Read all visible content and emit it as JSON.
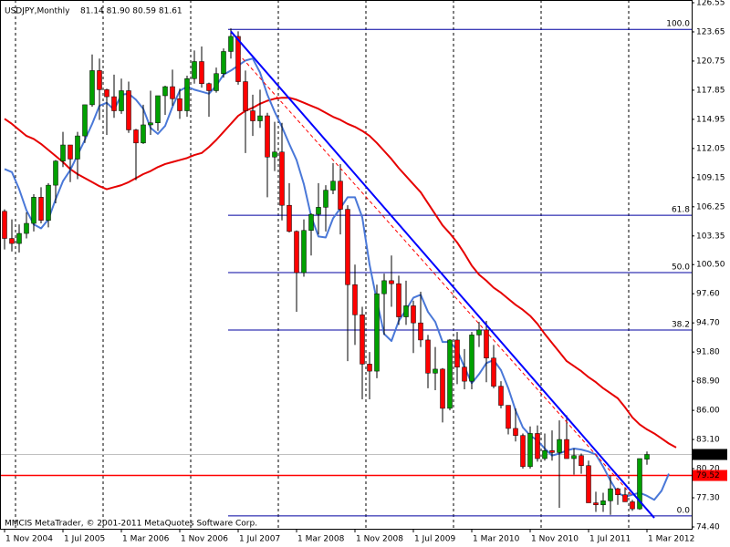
{
  "chart_data": {
    "type": "candlestick",
    "title": "USDJPY,Monthly",
    "subtitle": "81.14 81.90 80.59 81.61",
    "footer": "MMCIS MetaTrader, © 2001-2011 MetaQuotes Software Corp.",
    "categories": [
      "1 Nov 2004",
      null,
      null,
      null,
      null,
      null,
      null,
      null,
      "1 Jul 2005",
      null,
      null,
      null,
      null,
      null,
      null,
      null,
      "1 Mar 2006",
      null,
      null,
      null,
      null,
      null,
      null,
      null,
      "1 Nov 2006",
      null,
      null,
      null,
      null,
      null,
      null,
      null,
      "1 Jul 2007",
      null,
      null,
      null,
      null,
      null,
      null,
      null,
      "1 Mar 2008",
      null,
      null,
      null,
      null,
      null,
      null,
      null,
      "1 Nov 2008",
      null,
      null,
      null,
      null,
      null,
      null,
      null,
      "1 Jul 2009",
      null,
      null,
      null,
      null,
      null,
      null,
      null,
      "1 Mar 2010",
      null,
      null,
      null,
      null,
      null,
      null,
      null,
      "1 Nov 2010",
      null,
      null,
      null,
      null,
      null,
      null,
      null,
      "1 Jul 2011",
      null,
      null,
      null,
      null,
      null,
      null,
      null,
      "1 Mar 2012",
      null,
      null,
      null,
      null,
      null,
      null
    ],
    "open": [
      105.8,
      103.1,
      102.6,
      103.6,
      104.6,
      107.2,
      104.9,
      108.4,
      110.8,
      112.4,
      111.0,
      113.3,
      116.4,
      119.8,
      117.9,
      117.2,
      115.8,
      117.8,
      113.9,
      112.6,
      114.4,
      114.6,
      117.3,
      118.2,
      117.0,
      115.8,
      119.0,
      120.7,
      118.5,
      117.8,
      119.5,
      121.7,
      123.2,
      118.7,
      115.8,
      114.8,
      115.3,
      111.2,
      111.7,
      106.4,
      103.8,
      99.7,
      103.9,
      105.5,
      106.2,
      107.9,
      108.8,
      106.0,
      98.5,
      95.5,
      90.6,
      89.9,
      97.6,
      98.9,
      98.6,
      95.3,
      96.4,
      94.7,
      93.0,
      89.7,
      90.1,
      86.2,
      93.0,
      90.3,
      88.9,
      93.5,
      94.0,
      91.2,
      88.4,
      86.5,
      84.2,
      83.5,
      80.4,
      83.7,
      81.2,
      82.0,
      81.8,
      83.1,
      81.2,
      81.5,
      80.5,
      76.8,
      76.6,
      77.0,
      78.2,
      77.6,
      76.9,
      76.2,
      81.14,
      null,
      null,
      null,
      null,
      null,
      null
    ],
    "high": [
      106.0,
      105.0,
      104.5,
      105.7,
      107.5,
      108.2,
      108.6,
      110.9,
      113.7,
      112.4,
      113.7,
      116.4,
      121.4,
      121.0,
      118.0,
      119.4,
      119.0,
      118.7,
      114.0,
      116.4,
      117.8,
      117.3,
      118.3,
      119.9,
      118.0,
      119.3,
      121.8,
      122.2,
      118.6,
      120.1,
      122.0,
      124.0,
      123.7,
      119.8,
      117.4,
      117.9,
      115.6,
      114.7,
      114.6,
      108.6,
      103.9,
      105.0,
      105.6,
      108.6,
      108.4,
      110.6,
      110.5,
      106.4,
      100.5,
      96.3,
      91.8,
      98.5,
      99.6,
      101.4,
      99.4,
      98.9,
      96.9,
      97.8,
      93.5,
      92.3,
      90.2,
      93.1,
      93.8,
      92.1,
      93.8,
      94.8,
      94.9,
      92.5,
      88.9,
      86.5,
      86.2,
      83.7,
      84.4,
      84.5,
      83.7,
      84.0,
      85.0,
      85.5,
      82.2,
      81.7,
      81.0,
      77.9,
      77.8,
      79.5,
      78.3,
      78.3,
      77.1,
      81.2,
      81.9,
      null,
      null,
      null,
      null,
      null,
      null
    ],
    "low": [
      102.0,
      101.8,
      101.7,
      103.1,
      103.8,
      104.6,
      104.2,
      106.6,
      110.2,
      108.7,
      109.0,
      112.6,
      116.2,
      114.9,
      113.4,
      115.1,
      115.5,
      113.6,
      108.9,
      112.5,
      113.4,
      113.8,
      115.4,
      116.3,
      115.0,
      115.2,
      118.5,
      118.1,
      115.2,
      117.6,
      119.1,
      121.0,
      118.4,
      111.6,
      113.3,
      114.1,
      107.2,
      109.8,
      104.9,
      103.7,
      95.8,
      99.3,
      101.4,
      103.5,
      103.8,
      107.5,
      103.5,
      90.9,
      92.5,
      87.1,
      87.1,
      89.2,
      93.5,
      96.3,
      94.5,
      94.5,
      91.7,
      92.3,
      88.2,
      88.0,
      84.8,
      86.0,
      88.6,
      88.1,
      88.1,
      92.3,
      88.8,
      88.2,
      86.2,
      83.6,
      82.9,
      80.2,
      80.2,
      80.9,
      81.0,
      81.0,
      76.3,
      81.2,
      79.6,
      79.7,
      76.8,
      75.9,
      75.9,
      75.6,
      76.6,
      76.9,
      76.0,
      76.1,
      80.59,
      null,
      null,
      null,
      null,
      null,
      null
    ],
    "close": [
      103.1,
      102.6,
      103.6,
      104.6,
      107.2,
      104.9,
      108.4,
      110.8,
      112.4,
      111.0,
      113.3,
      116.4,
      119.8,
      117.9,
      117.2,
      115.8,
      117.8,
      113.9,
      112.6,
      114.4,
      114.6,
      117.3,
      118.2,
      117.0,
      115.8,
      119.0,
      120.7,
      118.5,
      117.8,
      119.5,
      121.7,
      123.2,
      118.7,
      115.8,
      114.8,
      115.3,
      111.2,
      111.7,
      106.4,
      103.8,
      99.7,
      103.9,
      105.5,
      106.2,
      107.9,
      108.8,
      106.0,
      98.5,
      95.5,
      90.6,
      89.9,
      97.6,
      98.9,
      98.6,
      95.3,
      96.4,
      94.7,
      93.0,
      89.7,
      90.1,
      86.2,
      93.0,
      90.3,
      88.9,
      93.5,
      94.0,
      91.2,
      88.4,
      86.5,
      84.2,
      83.5,
      80.4,
      83.7,
      81.2,
      82.0,
      81.8,
      83.1,
      81.2,
      81.5,
      80.5,
      76.8,
      76.6,
      77.0,
      78.2,
      77.6,
      76.9,
      76.2,
      81.2,
      81.61,
      null,
      null,
      null,
      null,
      null,
      null
    ],
    "up_color": "#00a000",
    "down_color": "#ff0000",
    "wick_color": "#000000",
    "series": [
      {
        "color": "#e60000",
        "width": 2,
        "values": [
          115.0,
          114.5,
          113.9,
          113.3,
          113.0,
          112.5,
          111.9,
          111.3,
          110.7,
          110.0,
          109.5,
          109.1,
          108.7,
          108.3,
          108.0,
          108.2,
          108.4,
          108.7,
          109.1,
          109.5,
          109.8,
          110.2,
          110.5,
          110.7,
          110.9,
          111.1,
          111.4,
          111.6,
          112.2,
          112.9,
          113.7,
          114.5,
          115.3,
          115.8,
          116.1,
          116.5,
          116.8,
          117.0,
          117.1,
          117.1,
          116.9,
          116.6,
          116.3,
          116.0,
          115.6,
          115.2,
          114.9,
          114.5,
          114.2,
          113.8,
          113.3,
          112.6,
          111.8,
          111.0,
          110.1,
          109.3,
          108.5,
          107.7,
          106.6,
          105.5,
          104.4,
          103.6,
          102.7,
          101.6,
          100.4,
          99.5,
          98.9,
          98.2,
          97.7,
          97.1,
          96.5,
          96.0,
          95.4,
          94.6,
          93.6,
          92.7,
          91.8,
          90.9,
          90.4,
          89.9,
          89.3,
          88.8,
          88.2,
          87.7,
          87.2,
          86.3,
          85.3,
          84.6,
          84.1,
          83.7,
          83.2,
          82.7,
          82.3,
          null,
          null
        ]
      },
      {
        "color": "#4a78d8",
        "width": 2,
        "values": [
          110.0,
          109.7,
          108.0,
          105.9,
          104.5,
          104.1,
          105.0,
          107.0,
          108.8,
          109.9,
          111.4,
          112.9,
          114.5,
          116.3,
          116.6,
          115.9,
          117.4,
          117.5,
          116.9,
          116.0,
          114.1,
          113.5,
          114.3,
          116.2,
          117.8,
          118.2,
          117.9,
          117.7,
          117.5,
          118.3,
          119.4,
          119.8,
          120.3,
          120.8,
          121.0,
          119.6,
          117.4,
          115.7,
          114.2,
          112.5,
          110.9,
          108.5,
          105.3,
          103.3,
          103.2,
          105.1,
          106.1,
          107.2,
          107.2,
          105.2,
          100.5,
          96.9,
          93.6,
          92.9,
          94.9,
          96.0,
          97.2,
          97.5,
          95.8,
          94.8,
          92.8,
          92.8,
          92.0,
          90.3,
          88.7,
          89.6,
          90.7,
          91.0,
          90.0,
          88.2,
          86.0,
          84.3,
          83.5,
          83.0,
          82.2,
          81.5,
          81.7,
          82.0,
          82.2,
          82.1,
          81.9,
          81.6,
          80.4,
          79.0,
          77.8,
          77.4,
          77.6,
          77.8,
          77.5,
          77.1,
          78.0,
          79.7,
          null,
          null,
          null
        ]
      }
    ],
    "trendlines": [
      {
        "color": "#0000ff",
        "width": 2,
        "x": [
          31,
          89
        ],
        "y": [
          123.7,
          75.3
        ]
      },
      {
        "color": "#ff0000",
        "width": 1,
        "dash": true,
        "x": [
          32,
          86
        ],
        "y": [
          121.5,
          77.5
        ]
      }
    ],
    "fibo": {
      "high": 123.9,
      "low": 75.5,
      "color": "#0000a0",
      "levels": [
        {
          "value": 100,
          "label": "100.0"
        },
        61.8,
        {
          "value": 50,
          "label": "50.0"
        },
        38.2,
        {
          "value": 0,
          "label": "0.0"
        }
      ]
    },
    "hline": {
      "value": 79.52,
      "color": "#ff0000"
    },
    "bid": 81.61,
    "ylim": [
      74.4,
      126.55
    ],
    "yticks": [
      126.55,
      123.65,
      120.75,
      117.85,
      114.95,
      112.05,
      109.15,
      106.25,
      103.35,
      {
        "value": 100.5,
        "label": "100.50"
      },
      {
        "value": 97.6,
        "label": "97.60"
      },
      {
        "value": 94.7,
        "label": "94.70"
      },
      {
        "value": 91.8,
        "label": "91.80"
      },
      {
        "value": 88.9,
        "label": "88.90"
      },
      {
        "value": 86,
        "label": "86.00"
      },
      {
        "value": 83.1,
        "label": "83.10"
      },
      {
        "value": 80.2,
        "label": "80.20"
      },
      {
        "value": 77.3,
        "label": "77.30"
      },
      {
        "value": 74.4,
        "label": "74.40"
      }
    ],
    "grid": true
  }
}
